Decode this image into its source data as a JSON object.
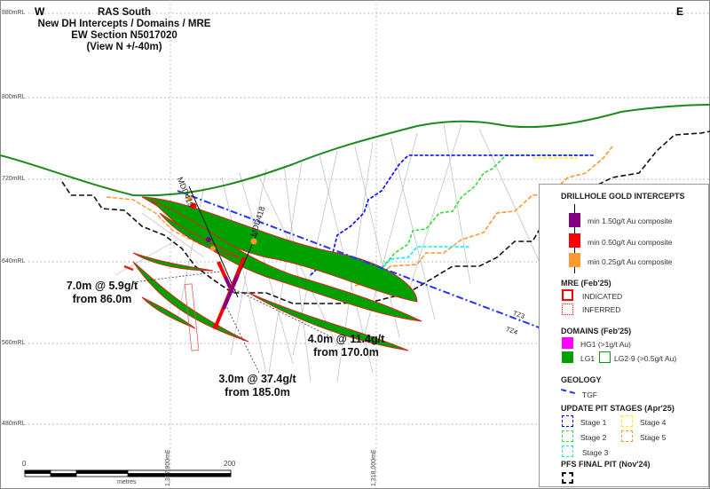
{
  "title": {
    "line1": "RAS South",
    "line2": "New DH Intercepts / Domains / MRE",
    "line3": "EW Section N5017020",
    "line4": "(View N +/-40m)"
  },
  "directions": {
    "west": "W",
    "east": "E"
  },
  "rl_labels": [
    "880mRL",
    "800mRL",
    "720mRL",
    "640mRL",
    "560mRL",
    "480mRL"
  ],
  "easting_labels": [
    "1,317,800mE",
    "1,318,000mE"
  ],
  "drillholes": [
    "MDD419",
    "MDD418"
  ],
  "intercepts": [
    {
      "line1": "7.0m @ 5.9g/t",
      "line2": "from 86.0m"
    },
    {
      "line1": "4.0m @ 11.4g/t",
      "line2": "from 170.0m"
    },
    {
      "line1": "3.0m @ 37.4g/t",
      "line2": "from 185.0m"
    }
  ],
  "fault_labels": [
    "TZ3",
    "TZ4"
  ],
  "scale_bar": {
    "start": "0",
    "end": "200",
    "unit": "metres"
  },
  "legend": {
    "intercepts_title": "DRILLHOLE GOLD INTERCEPTS",
    "intercepts": [
      {
        "label": "min 1.50g/t Au composite",
        "color": "#800080"
      },
      {
        "label": "min 0.50g/t Au composite",
        "color": "#ff0000"
      },
      {
        "label": "min 0.25g/t Au composite",
        "color": "#ff9933"
      }
    ],
    "mre_title": "MRE (Feb'25)",
    "mre": [
      {
        "label": "INDICATED",
        "color": "#ff0000"
      },
      {
        "label": "INFERRED",
        "color": "#ff0000"
      }
    ],
    "domains_title": "DOMAINS (Feb'25)",
    "domains": [
      {
        "label": "HG1 (>1g/t Au)",
        "color": "#ff00ff"
      },
      {
        "label": "LG1",
        "color": "#00a000"
      },
      {
        "label": "LG2-9 (>0.5g/t Au)",
        "color": "#00a000"
      }
    ],
    "geology_title": "GEOLOGY",
    "geology": [
      {
        "label": "TGF",
        "color": "#2233ff"
      }
    ],
    "pit_title": "UPDATE PIT STAGES (Apr'25)",
    "pit_stages": [
      {
        "label": "Stage 1",
        "color": "#0000ff"
      },
      {
        "label": "Stage 2",
        "color": "#33dd33"
      },
      {
        "label": "Stage 3",
        "color": "#00eeff"
      },
      {
        "label": "Stage 4",
        "color": "#ffee00"
      },
      {
        "label": "Stage 5",
        "color": "#ff9933"
      }
    ],
    "pfs_title": "PFS FINAL PIT (Nov'24)"
  }
}
